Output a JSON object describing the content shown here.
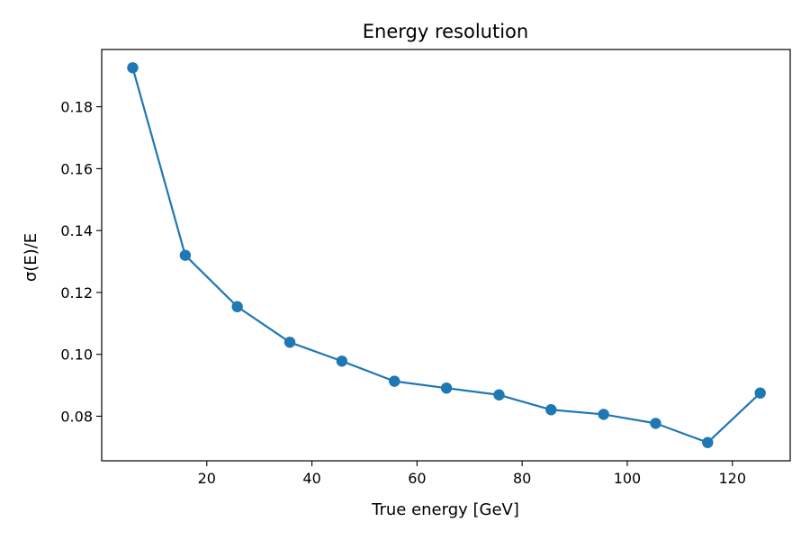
{
  "chart_data": {
    "type": "line",
    "title": "Energy resolution",
    "xlabel": "True energy [GeV]",
    "ylabel": "σ(E)/E",
    "xlim": [
      0.0,
      131.0
    ],
    "ylim": [
      0.0656,
      0.1985
    ],
    "xticks": [
      20,
      40,
      60,
      80,
      100,
      120
    ],
    "yticks": [
      0.08,
      0.1,
      0.12,
      0.14,
      0.16,
      0.18
    ],
    "xtick_labels": [
      "20",
      "40",
      "60",
      "80",
      "100",
      "120"
    ],
    "ytick_labels": [
      "0.08",
      "0.10",
      "0.12",
      "0.14",
      "0.16",
      "0.18"
    ],
    "grid": false,
    "color": "#1f77b4",
    "marker": "circle",
    "series": [
      {
        "x": [
          5.9,
          15.9,
          25.8,
          35.8,
          45.7,
          55.7,
          65.6,
          75.6,
          85.5,
          95.5,
          105.4,
          115.3,
          125.3
        ],
        "y": [
          0.1926,
          0.132,
          0.1154,
          0.1039,
          0.0978,
          0.0913,
          0.0891,
          0.0869,
          0.0821,
          0.0806,
          0.0777,
          0.0715,
          0.0875
        ]
      }
    ]
  }
}
